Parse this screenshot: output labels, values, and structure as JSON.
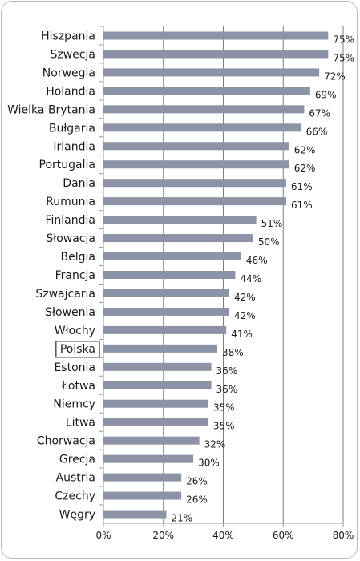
{
  "chart_data": {
    "type": "bar",
    "orientation": "horizontal",
    "categories": [
      "Hiszpania",
      "Szwecja",
      "Norwegia",
      "Holandia",
      "Wielka Brytania",
      "Bułgaria",
      "Irlandia",
      "Portugalia",
      "Dania",
      "Rumunia",
      "Finlandia",
      "Słowacja",
      "Belgia",
      "Francja",
      "Szwajcaria",
      "Słowenia",
      "Włochy",
      "Polska",
      "Estonia",
      "Łotwa",
      "Niemcy",
      "Litwa",
      "Chorwacja",
      "Grecja",
      "Austria",
      "Czechy",
      "Węgry"
    ],
    "values": [
      75,
      75,
      72,
      69,
      67,
      66,
      62,
      62,
      61,
      61,
      51,
      50,
      46,
      44,
      42,
      42,
      41,
      38,
      36,
      36,
      35,
      35,
      32,
      30,
      26,
      26,
      21
    ],
    "value_labels": [
      "75%",
      "75%",
      "72%",
      "69%",
      "67%",
      "66%",
      "62%",
      "62%",
      "61%",
      "61%",
      "51%",
      "50%",
      "46%",
      "44%",
      "42%",
      "42%",
      "41%",
      "38%",
      "36%",
      "36%",
      "35%",
      "35%",
      "32%",
      "30%",
      "26%",
      "26%",
      "21%"
    ],
    "highlighted_category": "Polska",
    "xlim": [
      0,
      80
    ],
    "x_ticks": [
      0,
      20,
      40,
      60,
      80
    ],
    "x_tick_labels": [
      "0%",
      "20%",
      "40%",
      "60%",
      "80%"
    ],
    "grid": "vertical",
    "legend": "none",
    "bar_color": "#8c93a6",
    "grid_color": "#7d7d7d",
    "axis_color": "#9a9a9a"
  }
}
